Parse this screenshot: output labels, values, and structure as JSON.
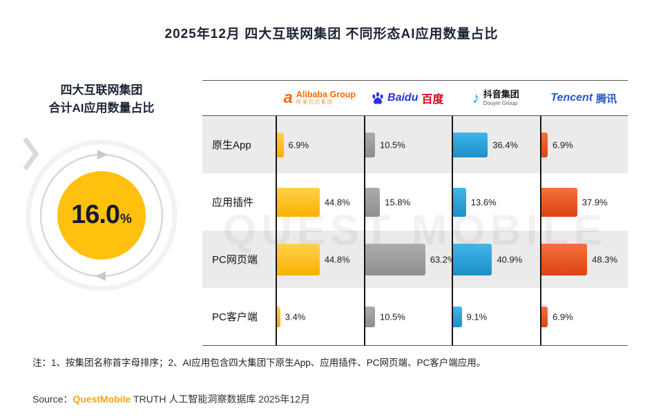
{
  "title": "2025年12月 四大互联网集团 不同形态AI应用数量占比",
  "left_panel": {
    "heading_line1": "四大互联网集团",
    "heading_line2": "合计AI应用数量占比",
    "value": "16.0",
    "unit": "%",
    "circle_color": "#FFC10E"
  },
  "header_logos": {
    "alibaba": {
      "icon_char": "a",
      "name": "Alibaba Group",
      "sub": "阿里巴巴集团"
    },
    "baidu": {
      "icon_char": "♪",
      "latin": "Baidu",
      "cn": "百度"
    },
    "douyin": {
      "icon_char": "♪",
      "cn": "抖音集团",
      "en": "Douyin Group"
    },
    "tencent": {
      "latin": "Tencent",
      "cn": "腾讯"
    }
  },
  "chart_data": {
    "type": "bar",
    "orientation": "horizontal",
    "title": "2025年12月 四大互联网集团 不同形态AI应用数量占比",
    "categories": [
      "原生App",
      "应用插件",
      "PC网页端",
      "PC客户端"
    ],
    "series": [
      {
        "name": "Alibaba Group",
        "color_from": "#FFD24A",
        "color_to": "#F9B000",
        "values": [
          6.9,
          44.8,
          44.8,
          3.4
        ]
      },
      {
        "name": "Baidu 百度",
        "color_from": "#ACACAC",
        "color_to": "#8E8E8E",
        "values": [
          10.5,
          15.8,
          63.2,
          10.5
        ]
      },
      {
        "name": "抖音集团 Douyin Group",
        "color_from": "#3FB6E8",
        "color_to": "#1D8FC9",
        "values": [
          36.4,
          13.6,
          40.9,
          9.1
        ]
      },
      {
        "name": "Tencent 腾讯",
        "color_from": "#F4703E",
        "color_to": "#DD4314",
        "values": [
          6.9,
          37.9,
          48.3,
          6.9
        ]
      }
    ],
    "value_suffix": "%",
    "xlim": [
      0,
      70
    ],
    "grid": false,
    "legend_position": "top",
    "summary_value": 16.0,
    "summary_label": "四大互联网集团 合计AI应用数量占比"
  },
  "watermark": "QUEST MOBILE",
  "note": "注：1、按集团名称首字母排序；2、AI应用包含四大集团下原生App、应用插件、PC网页端、PC客户端应用。",
  "source": {
    "label": "Source：",
    "brand": "QuestMobile",
    "text": " TRUTH 人工智能洞察数据库 2025年12月"
  }
}
